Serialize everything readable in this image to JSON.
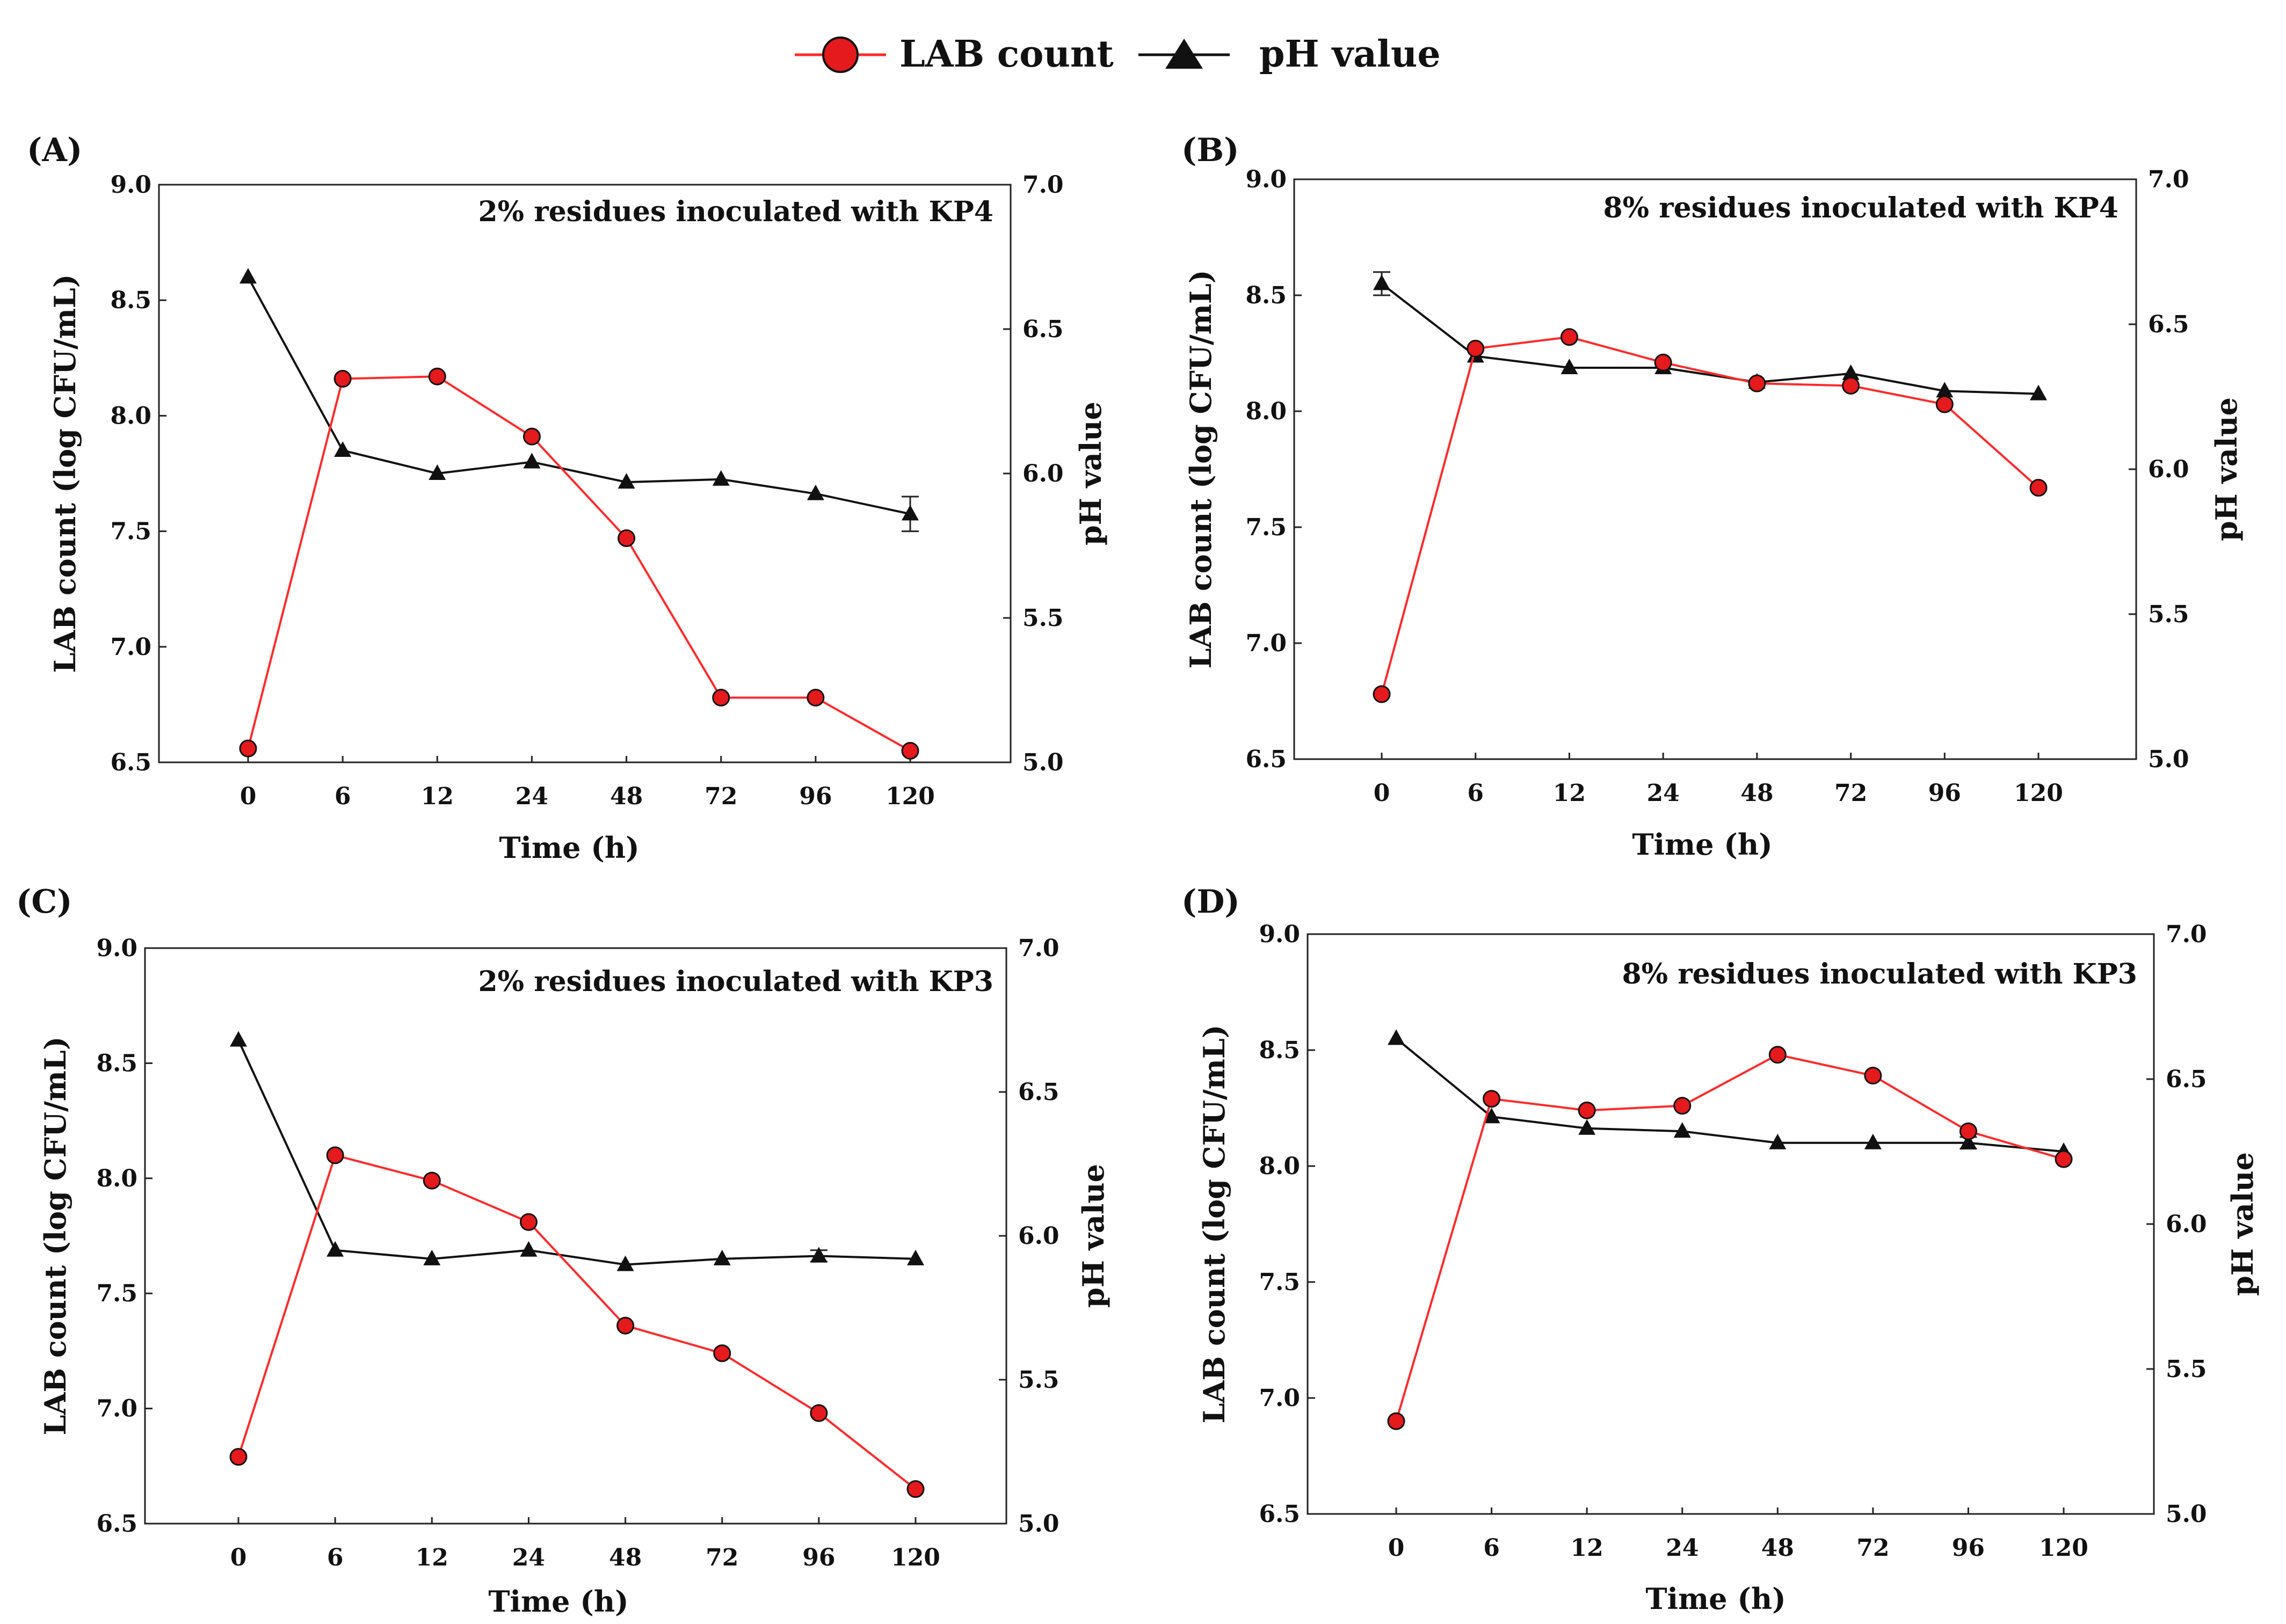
{
  "colors": {
    "lab": "#ff2a2a",
    "lab_fill": "#e41a1c",
    "ph": "#111111"
  },
  "legend": {
    "lab_label": "LAB count",
    "ph_label": "pH value"
  },
  "chart_data": [
    {
      "type": "line",
      "panel_label": "(A)",
      "title": "2% residues inoculated with KP4",
      "xlabel": "Time (h)",
      "ylabel": "LAB count (log CFU/mL)",
      "y2label": "pH value",
      "categories": [
        "0",
        "6",
        "12",
        "24",
        "48",
        "72",
        "96",
        "120"
      ],
      "ylim": [
        6.5,
        9.0
      ],
      "yticks": [
        "6.5",
        "7.0",
        "7.5",
        "8.0",
        "8.5",
        "9.0"
      ],
      "y2lim": [
        5.0,
        7.0
      ],
      "y2ticks": [
        "5.0",
        "5.5",
        "6.0",
        "6.5",
        "7.0"
      ],
      "series": [
        {
          "name": "LAB count",
          "axis": "left",
          "values": [
            6.56,
            8.16,
            8.17,
            7.91,
            7.47,
            6.78,
            6.78,
            6.55
          ]
        },
        {
          "name": "pH value",
          "axis": "right",
          "values": [
            6.68,
            6.08,
            6.0,
            6.04,
            5.97,
            5.98,
            5.93,
            5.86
          ],
          "errors": [
            0.01,
            0.01,
            0.01,
            0.01,
            0.01,
            0.01,
            0.01,
            0.06
          ]
        }
      ]
    },
    {
      "type": "line",
      "panel_label": "(B)",
      "title": "8% residues inoculated with KP4",
      "xlabel": "Time (h)",
      "ylabel": "LAB count (log CFU/mL)",
      "y2label": "pH value",
      "categories": [
        "0",
        "6",
        "12",
        "24",
        "48",
        "72",
        "96",
        "120"
      ],
      "ylim": [
        6.5,
        9.0
      ],
      "yticks": [
        "6.5",
        "7.0",
        "7.5",
        "8.0",
        "8.5",
        "9.0"
      ],
      "y2lim": [
        5.0,
        7.0
      ],
      "y2ticks": [
        "5.0",
        "5.5",
        "6.0",
        "6.5",
        "7.0"
      ],
      "series": [
        {
          "name": "LAB count",
          "axis": "left",
          "values": [
            6.78,
            8.27,
            8.32,
            8.21,
            8.12,
            8.11,
            8.03,
            7.67
          ]
        },
        {
          "name": "pH value",
          "axis": "right",
          "values": [
            6.64,
            6.39,
            6.35,
            6.35,
            6.3,
            6.33,
            6.27,
            6.26
          ],
          "errors": [
            0.04,
            0.01,
            0.01,
            0.01,
            0.01,
            0.01,
            0.01,
            0.01
          ]
        }
      ]
    },
    {
      "type": "line",
      "panel_label": "(C)",
      "title": "2% residues inoculated with KP3",
      "xlabel": "Time (h)",
      "ylabel": "LAB count (log CFU/mL)",
      "y2label": "pH value",
      "categories": [
        "0",
        "6",
        "12",
        "24",
        "48",
        "72",
        "96",
        "120"
      ],
      "ylim": [
        6.5,
        9.0
      ],
      "yticks": [
        "6.5",
        "7.0",
        "7.5",
        "8.0",
        "8.5",
        "9.0"
      ],
      "y2lim": [
        5.0,
        7.0
      ],
      "y2ticks": [
        "5.0",
        "5.5",
        "6.0",
        "6.5",
        "7.0"
      ],
      "series": [
        {
          "name": "LAB count",
          "axis": "left",
          "values": [
            6.79,
            8.1,
            7.99,
            7.81,
            7.36,
            7.24,
            6.98,
            6.65
          ]
        },
        {
          "name": "pH value",
          "axis": "right",
          "values": [
            6.68,
            5.95,
            5.92,
            5.95,
            5.9,
            5.92,
            5.93,
            5.92
          ],
          "errors": [
            0.01,
            0.01,
            0.01,
            0.01,
            0.01,
            0.01,
            0.02,
            0.01
          ]
        }
      ]
    },
    {
      "type": "line",
      "panel_label": "(D)",
      "title": "8% residues inoculated with KP3",
      "xlabel": "Time (h)",
      "ylabel": "LAB count (log CFU/mL)",
      "y2label": "pH value",
      "categories": [
        "0",
        "6",
        "12",
        "24",
        "48",
        "72",
        "96",
        "120"
      ],
      "ylim": [
        6.5,
        9.0
      ],
      "yticks": [
        "6.5",
        "7.0",
        "7.5",
        "8.0",
        "8.5",
        "9.0"
      ],
      "y2lim": [
        5.0,
        7.0
      ],
      "y2ticks": [
        "5.0",
        "5.5",
        "6.0",
        "6.5",
        "7.0"
      ],
      "series": [
        {
          "name": "LAB count",
          "axis": "left",
          "values": [
            6.9,
            8.29,
            8.24,
            8.26,
            8.48,
            8.39,
            8.15,
            8.03
          ]
        },
        {
          "name": "pH value",
          "axis": "right",
          "values": [
            6.64,
            6.37,
            6.33,
            6.32,
            6.28,
            6.28,
            6.28,
            6.25
          ],
          "errors": [
            0.01,
            0.01,
            0.01,
            0.01,
            0.01,
            0.01,
            0.02,
            0.01
          ]
        }
      ]
    }
  ]
}
